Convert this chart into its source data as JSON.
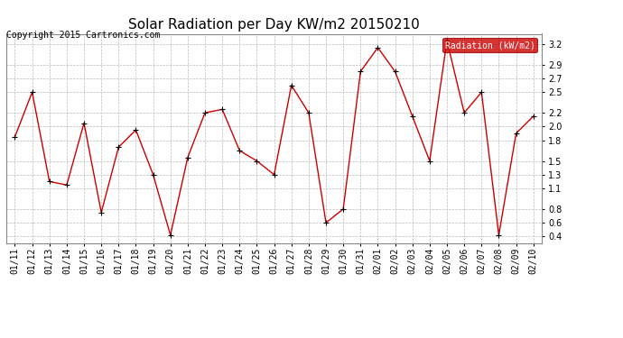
{
  "title": "Solar Radiation per Day KW/m2 20150210",
  "copyright_text": "Copyright 2015 Cartronics.com",
  "legend_label": "Radiation (kW/m2)",
  "dates": [
    "01/11",
    "01/12",
    "01/13",
    "01/14",
    "01/15",
    "01/16",
    "01/17",
    "01/18",
    "01/19",
    "01/20",
    "01/21",
    "01/22",
    "01/23",
    "01/24",
    "01/25",
    "01/26",
    "01/27",
    "01/28",
    "01/29",
    "01/30",
    "01/31",
    "02/01",
    "02/02",
    "02/03",
    "02/04",
    "02/05",
    "02/06",
    "02/07",
    "02/08",
    "02/09",
    "02/10"
  ],
  "values": [
    1.85,
    2.5,
    1.2,
    1.15,
    2.05,
    0.75,
    1.7,
    1.95,
    1.3,
    0.42,
    1.55,
    2.2,
    2.25,
    1.65,
    1.5,
    1.3,
    2.6,
    2.2,
    0.6,
    0.8,
    2.8,
    3.15,
    2.8,
    2.15,
    1.5,
    3.25,
    2.2,
    2.5,
    0.42,
    1.9,
    2.15
  ],
  "ylim": [
    0.3,
    3.35
  ],
  "yticks": [
    0.4,
    0.6,
    0.8,
    1.1,
    1.3,
    1.5,
    1.8,
    2.0,
    2.2,
    2.5,
    2.7,
    2.9,
    3.2
  ],
  "line_color": "#cc0000",
  "marker_color": "#000000",
  "background_color": "#ffffff",
  "grid_color": "#bbbbbb",
  "title_fontsize": 11,
  "copyright_fontsize": 7,
  "tick_fontsize": 7,
  "legend_bg": "#cc0000",
  "legend_fg": "#ffffff"
}
